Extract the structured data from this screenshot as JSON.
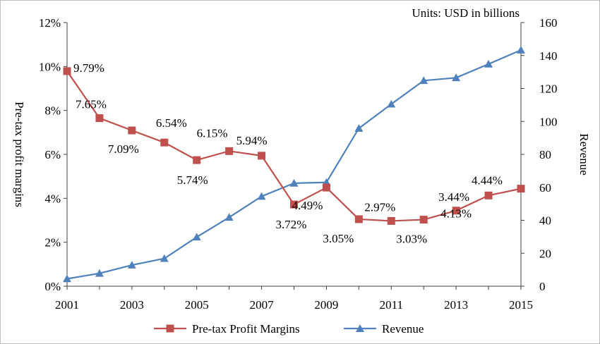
{
  "chart_data": {
    "type": "line",
    "title": "",
    "units_note": "Units: USD in billions",
    "x": [
      2001,
      2002,
      2003,
      2004,
      2005,
      2006,
      2007,
      2008,
      2009,
      2010,
      2011,
      2012,
      2013,
      2014,
      2015
    ],
    "x_tick_labels": [
      "2001",
      "2003",
      "2005",
      "2007",
      "2009",
      "2011",
      "2013",
      "2015"
    ],
    "xlim": [
      2001,
      2015
    ],
    "ylabel_left": "Pre-tax profit margins",
    "ylabel_right": "Revenue",
    "ylim_left": [
      0,
      12
    ],
    "ylim_right": [
      0,
      160
    ],
    "y_left_tick_labels": [
      "0%",
      "2%",
      "4%",
      "6%",
      "8%",
      "10%",
      "12%"
    ],
    "y_right_tick_labels": [
      "0",
      "20",
      "40",
      "60",
      "80",
      "100",
      "120",
      "140",
      "160"
    ],
    "grid": false,
    "legend_position": "bottom",
    "series": [
      {
        "name": "Pre-tax Profit Margins",
        "axis": "left",
        "color": "#c0504d",
        "marker": "square",
        "values": [
          9.79,
          7.65,
          7.09,
          6.54,
          5.74,
          6.15,
          5.94,
          3.72,
          4.49,
          3.05,
          2.97,
          3.03,
          3.44,
          4.13,
          4.44
        ],
        "labels": [
          "9.79%",
          "7.65%",
          "7.09%",
          "6.54%",
          "5.74%",
          "6.15%",
          "5.94%",
          "3.72%",
          "4.49%",
          "3.05%",
          "2.97%",
          "3.03%",
          "3.44%",
          "4.13%",
          "4.44%"
        ]
      },
      {
        "name": "Revenue",
        "axis": "right",
        "color": "#4f81bd",
        "marker": "triangle",
        "values": [
          4.5,
          7.8,
          12.8,
          16.8,
          29.8,
          41.8,
          54.5,
          62.5,
          63.0,
          95.8,
          110.5,
          124.8,
          126.5,
          134.8,
          143.3
        ]
      }
    ]
  }
}
